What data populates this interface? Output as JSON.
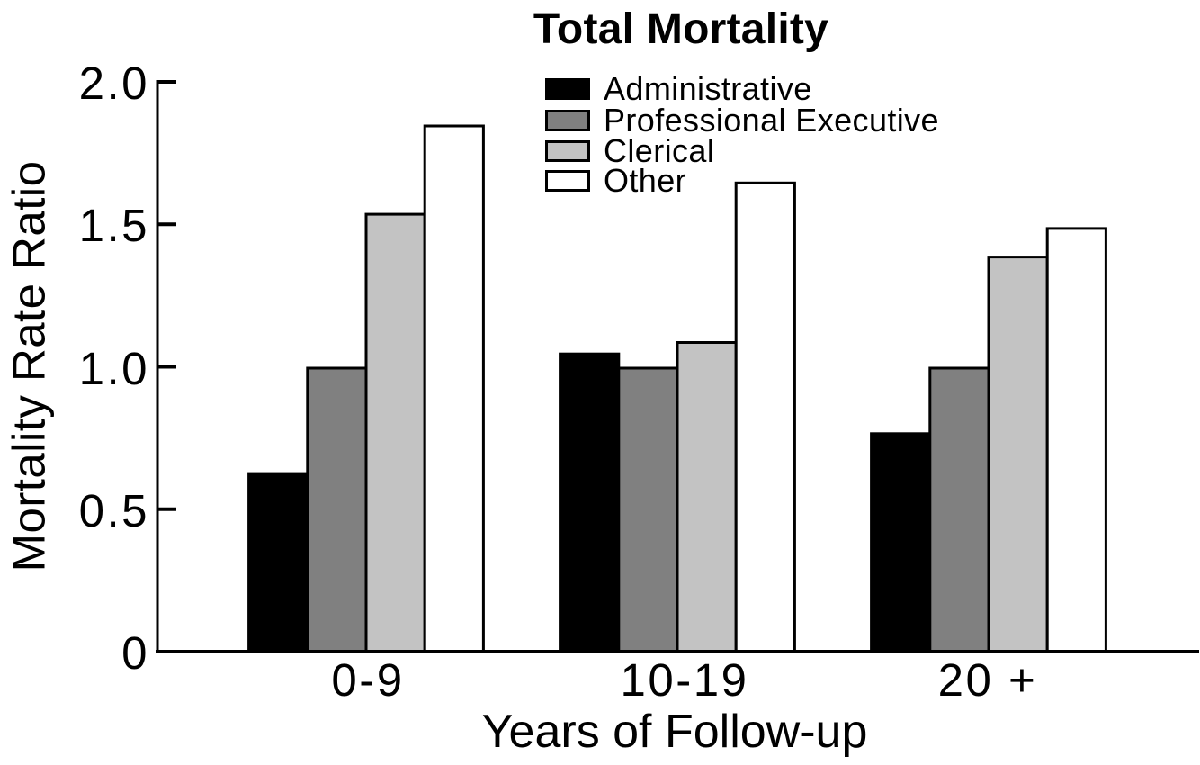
{
  "chart_data": {
    "type": "bar",
    "title": "Total Mortality",
    "xlabel": "Years of Follow-up",
    "ylabel": "Mortality Rate Ratio",
    "categories": [
      "0-9",
      "10-19",
      "20 +"
    ],
    "series": [
      {
        "name": "Administrative",
        "color": "#000000",
        "values": [
          0.63,
          1.05,
          0.77
        ]
      },
      {
        "name": "Professional Executive",
        "color": "#808080",
        "values": [
          1.0,
          1.0,
          1.0
        ]
      },
      {
        "name": "Clerical",
        "color": "#c3c3c3",
        "values": [
          1.54,
          1.09,
          1.39
        ]
      },
      {
        "name": "Other",
        "color": "#ffffff",
        "values": [
          1.85,
          1.65,
          1.49
        ]
      }
    ],
    "yticks": [
      {
        "value": 2.0,
        "label": "2.0"
      },
      {
        "value": 1.5,
        "label": "1.5"
      },
      {
        "value": 1.0,
        "label": "1.0"
      },
      {
        "value": 0.5,
        "label": "0.5"
      },
      {
        "value": 0.0,
        "label": "0"
      }
    ],
    "ylim": [
      0,
      2.0
    ],
    "grid": false,
    "bar_outline_color": "#000000",
    "axis_color": "#000000",
    "legend_position": "upper-center-inside"
  }
}
